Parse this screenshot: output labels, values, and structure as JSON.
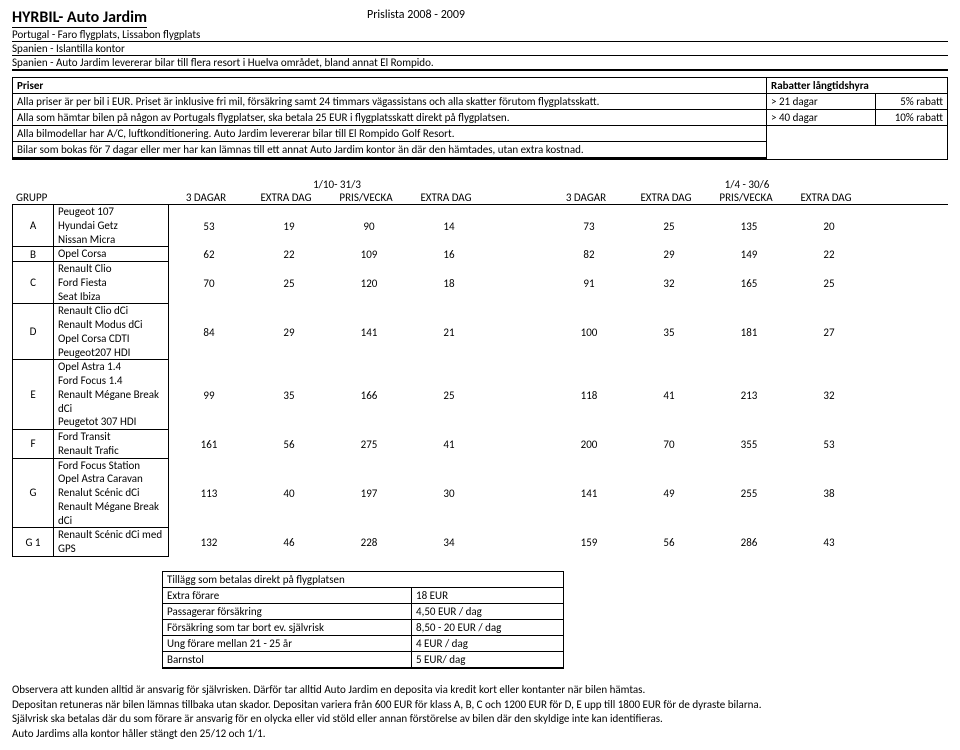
{
  "header": {
    "title": "HYRBIL- Auto Jardim",
    "subtitle": "Prislista 2008 - 2009",
    "meta1": "Portugal  - Faro flygplats,  Lissabon flygplats",
    "meta2": "Spanien - Islantilla kontor",
    "meta3": "Spanien - Auto Jardim levererar bilar till flera resort i Huelva området, bland annat El Rompido."
  },
  "info": {
    "left_header": "Priser",
    "left_lines": [
      "Alla priser är per bil i EUR. Priset är inklusive fri mil, försäkring samt 24 timmars vägassistans och alla skatter förutom flygplatsskatt.",
      "Alla som hämtar bilen på någon av Portugals flygplatser, ska betala 25 EUR i flygplatsskatt direkt på flygplatsen.",
      "Alla bilmodellar har A/C, luftkonditionering. Auto Jardim levererar bilar till El Rompido Golf Resort.",
      "Bilar som bokas för 7 dagar eller mer har kan lämnas till ett annat Auto Jardim kontor än där den hämtades, utan extra kostnad."
    ],
    "right_header": "Rabatter långtidshyra",
    "right_rows": [
      {
        "a": "> 21 dagar",
        "b": "5% rabatt"
      },
      {
        "a": "> 40 dagar",
        "b": "10% rabatt"
      }
    ]
  },
  "periods": {
    "a": "1/10- 31/3",
    "b": "1/4 - 30/6"
  },
  "columns": {
    "grupp": "GRUPP",
    "c1": "3 DAGAR",
    "c2": "EXTRA DAG",
    "c3": "PRIS/VECKA",
    "c4": "EXTRA DAG",
    "c5": "3 DAGAR",
    "c6": "EXTRA DAG",
    "c7": "PRIS/VECKA",
    "c8": "EXTRA DAG"
  },
  "rows": [
    {
      "g": "A",
      "models": [
        "Peugeot 107",
        "Hyundai Getz",
        "Nissan Micra"
      ],
      "v": [
        "53",
        "19",
        "90",
        "14",
        "73",
        "25",
        "135",
        "20"
      ]
    },
    {
      "g": "B",
      "models": [
        "Opel Corsa"
      ],
      "v": [
        "62",
        "22",
        "109",
        "16",
        "82",
        "29",
        "149",
        "22"
      ]
    },
    {
      "g": "C",
      "models": [
        "Renault Clio",
        "Ford Fiesta",
        "Seat Ibiza"
      ],
      "v": [
        "70",
        "25",
        "120",
        "18",
        "91",
        "32",
        "165",
        "25"
      ]
    },
    {
      "g": "D",
      "models": [
        "Renault Clio dCi",
        "Renault Modus dCi",
        "Opel Corsa CDTI",
        "Peugeot207 HDI"
      ],
      "v": [
        "84",
        "29",
        "141",
        "21",
        "100",
        "35",
        "181",
        "27"
      ]
    },
    {
      "g": "E",
      "models": [
        "Opel Astra 1.4",
        "Ford Focus 1.4",
        "Renault Mégane Break dCi",
        "Peugetot 307 HDI"
      ],
      "v": [
        "99",
        "35",
        "166",
        "25",
        "118",
        "41",
        "213",
        "32"
      ]
    },
    {
      "g": "F",
      "models": [
        "Ford Transit",
        "Renault Trafic"
      ],
      "v": [
        "161",
        "56",
        "275",
        "41",
        "200",
        "70",
        "355",
        "53"
      ]
    },
    {
      "g": "G",
      "models": [
        "Ford Focus Station",
        "Opel Astra Caravan",
        "Renalut Scénic dCi",
        "Renault Mégane Break dCi"
      ],
      "v": [
        "113",
        "40",
        "197",
        "30",
        "141",
        "49",
        "255",
        "38"
      ]
    },
    {
      "g": "G 1",
      "models": [
        "Renault Scénic dCi  med GPS"
      ],
      "v": [
        "132",
        "46",
        "228",
        "34",
        "159",
        "56",
        "286",
        "43"
      ]
    }
  ],
  "addon": {
    "header": "Tillägg som betalas direkt på flygplatsen",
    "rows": [
      {
        "a": "Extra förare",
        "b": "18 EUR"
      },
      {
        "a": "Passagerar försäkring",
        "b": "4,50 EUR / dag"
      },
      {
        "a": "Försäkring som tar bort ev. självrisk",
        "b": "8,50 - 20 EUR / dag"
      },
      {
        "a": "Ung förare mellan 21 - 25 år",
        "b": "4 EUR / dag"
      },
      {
        "a": "Barnstol",
        "b": "5 EUR/ dag"
      }
    ]
  },
  "footer": [
    "Observera att kunden alltid är ansvarig för självrisken. Därför tar alltid Auto Jardim en deposita via kredit kort eller kontanter när bilen hämtas.",
    "Depositan retuneras när bilen lämnas tillbaka utan skador. Depositan variera från 600 EUR för klass A, B, C och 1200 EUR för D, E upp till 1800 EUR för de dyraste bilarna.",
    "Självrisk ska betalas där du som förare är ansvarig för en olycka eller vid stöld eller annan förstörelse av bilen där den skyldige inte kan identifieras.",
    "Auto Jardims alla kontor håller stängt den 25/12 och 1/1."
  ]
}
